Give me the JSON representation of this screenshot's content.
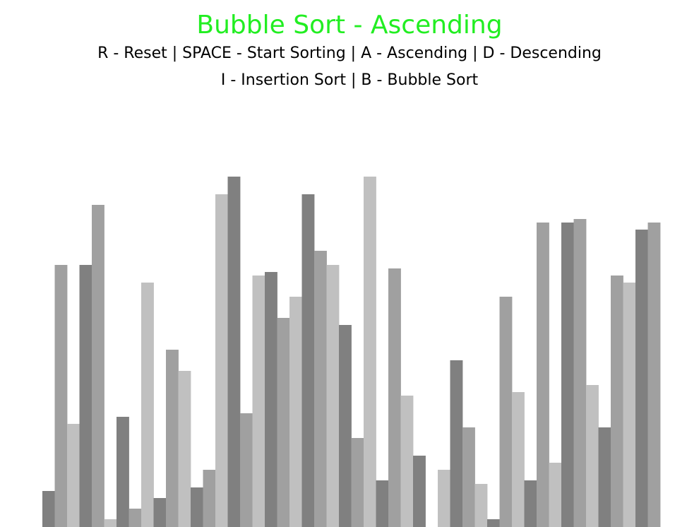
{
  "game": {
    "title": "Bubble Sort - Ascending",
    "title_color": "#22ee22",
    "help_line_1": "R - Reset | SPACE - Start Sorting | A - Ascending | D - Descending",
    "help_line_2": "I - Insertion Sort | B - Bubble Sort"
  },
  "array": {
    "bar_shades": [
      "#808080",
      "#a0a0a0",
      "#c0c0c0"
    ],
    "values": [
      51,
      371,
      146,
      371,
      456,
      11,
      156,
      26,
      346,
      41,
      251,
      221,
      56,
      81,
      471,
      496,
      161,
      356,
      361,
      296,
      326,
      471,
      391,
      371,
      286,
      126,
      496,
      66,
      366,
      186,
      101,
      0,
      81,
      236,
      141,
      61,
      11,
      326,
      191,
      66,
      431,
      91,
      431,
      436,
      201,
      141,
      356,
      346,
      421,
      431
    ]
  }
}
